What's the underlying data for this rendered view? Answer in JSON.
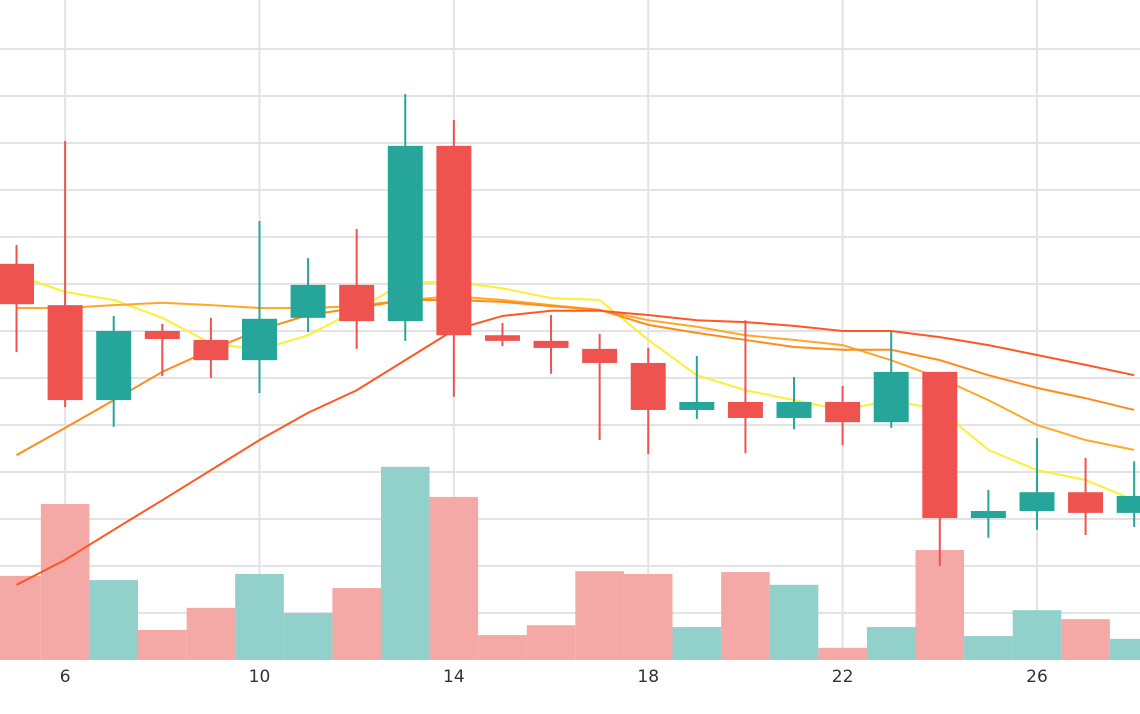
{
  "chart_data": {
    "type": "candlestick",
    "x": [
      5,
      6,
      7,
      8,
      9,
      10,
      11,
      12,
      13,
      14,
      15,
      16,
      17,
      18,
      19,
      20,
      21,
      22,
      23,
      24,
      25,
      26,
      27,
      28
    ],
    "open": [
      8.43,
      7.55,
      5.53,
      7.0,
      6.81,
      6.38,
      7.28,
      7.98,
      7.21,
      10.94,
      6.91,
      6.79,
      6.62,
      6.32,
      5.32,
      5.49,
      5.15,
      5.49,
      5.06,
      6.13,
      3.02,
      3.17,
      3.57,
      3.13
    ],
    "high": [
      8.83,
      11.04,
      7.32,
      7.15,
      7.28,
      9.34,
      8.55,
      9.17,
      12.04,
      11.49,
      7.17,
      7.34,
      6.94,
      6.64,
      6.47,
      7.23,
      6.02,
      5.83,
      6.98,
      6.13,
      3.62,
      4.72,
      4.3,
      4.23
    ],
    "low": [
      6.55,
      5.38,
      4.96,
      6.04,
      6.0,
      5.68,
      6.98,
      6.62,
      6.79,
      5.6,
      6.68,
      6.09,
      4.68,
      4.38,
      5.13,
      4.4,
      4.91,
      4.57,
      4.94,
      2.0,
      2.6,
      2.77,
      2.66,
      2.83
    ],
    "close": [
      7.57,
      5.53,
      7.0,
      6.83,
      6.38,
      7.26,
      7.98,
      7.21,
      10.94,
      6.91,
      6.79,
      6.64,
      6.32,
      5.32,
      5.49,
      5.15,
      5.49,
      5.06,
      6.13,
      3.02,
      3.17,
      3.57,
      3.13,
      3.49
    ],
    "up_color": "#26a69a",
    "down_color": "#ef5350",
    "volume": {
      "values": [
        1.79,
        3.32,
        1.7,
        0.64,
        1.11,
        1.83,
        1.0,
        1.53,
        4.11,
        3.47,
        0.53,
        0.74,
        1.89,
        1.83,
        0.7,
        1.87,
        1.6,
        0.26,
        0.7,
        2.34,
        0.51,
        1.06,
        0.87,
        0.45
      ],
      "up_color": "#92d0cb",
      "down_color": "#f5a9a6"
    },
    "lines": [
      {
        "color": "#ffee33",
        "values": [
          8.19,
          7.83,
          7.66,
          7.28,
          6.74,
          6.6,
          6.91,
          7.45,
          8.04,
          8.04,
          7.91,
          7.7,
          7.66,
          6.81,
          6.06,
          5.74,
          5.53,
          5.32,
          5.53,
          5.32,
          4.47,
          4.04,
          3.83,
          3.4
        ]
      },
      {
        "color": "#ffa726",
        "values": [
          7.49,
          7.49,
          7.55,
          7.6,
          7.55,
          7.49,
          7.49,
          7.53,
          7.66,
          7.74,
          7.66,
          7.55,
          7.45,
          7.23,
          7.09,
          6.91,
          6.81,
          6.7,
          6.38,
          6.0,
          5.53,
          5.0,
          4.68,
          4.47
        ]
      },
      {
        "color": "#ff8c1a",
        "values": [
          4.36,
          4.94,
          5.53,
          6.13,
          6.6,
          7.02,
          7.34,
          7.49,
          7.66,
          7.66,
          7.62,
          7.53,
          7.45,
          7.13,
          6.96,
          6.81,
          6.66,
          6.6,
          6.6,
          6.38,
          6.06,
          5.79,
          5.57,
          5.32
        ]
      },
      {
        "color": "#ff5722",
        "values": [
          1.6,
          2.13,
          2.77,
          3.4,
          4.04,
          4.68,
          5.26,
          5.74,
          6.38,
          7.02,
          7.32,
          7.43,
          7.43,
          7.34,
          7.23,
          7.19,
          7.11,
          7.0,
          7.0,
          6.87,
          6.7,
          6.49,
          6.28,
          6.06
        ]
      }
    ],
    "xlim": [
      4.66,
      28.12
    ],
    "xticks": [
      6,
      10,
      14,
      18,
      22,
      26
    ],
    "ylim": [
      0,
      14
    ],
    "yticks": [
      1,
      2,
      3,
      4,
      5,
      6,
      7,
      8,
      9,
      10,
      11,
      12,
      13
    ],
    "grid": true
  }
}
